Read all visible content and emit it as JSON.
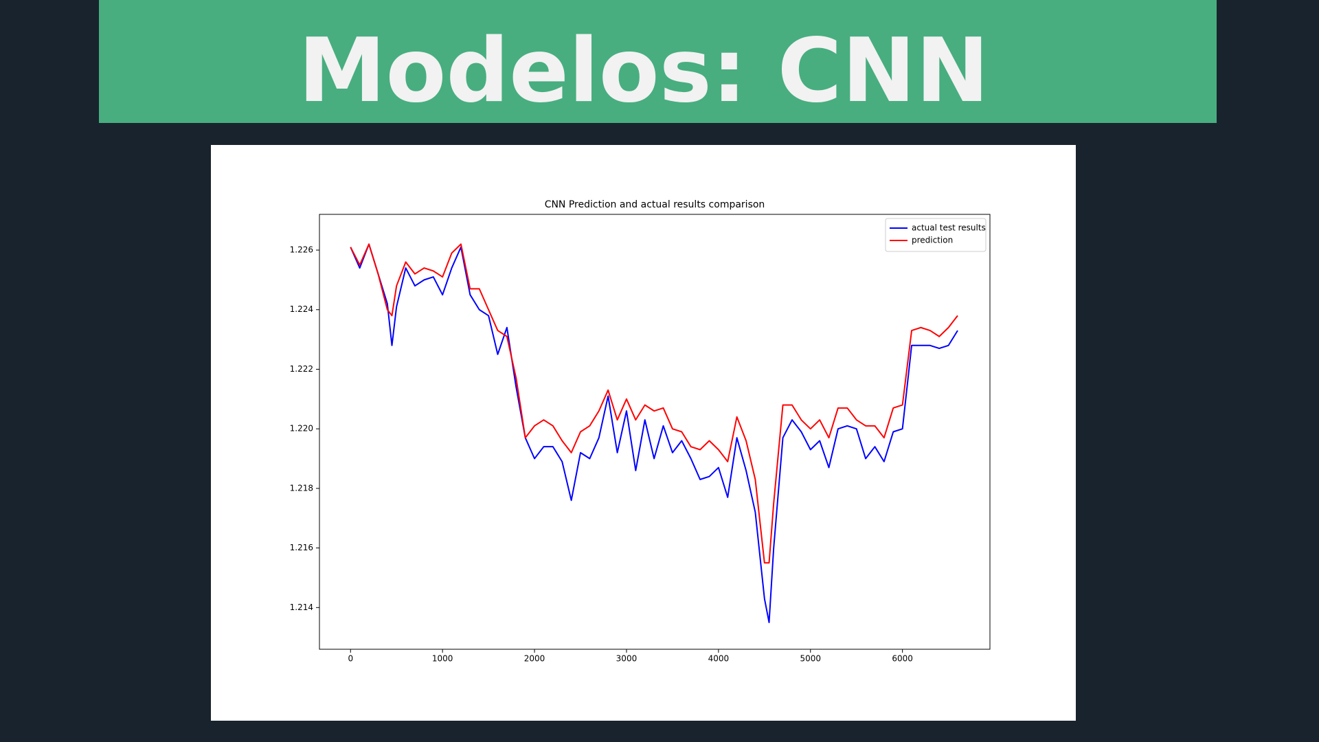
{
  "slide": {
    "title": "Modelos: CNN"
  },
  "chart_data": {
    "type": "line",
    "title": "CNN Prediction and actual results comparison",
    "x": [
      0,
      100,
      200,
      300,
      400,
      450,
      500,
      600,
      700,
      800,
      900,
      1000,
      1100,
      1200,
      1300,
      1400,
      1500,
      1600,
      1700,
      1800,
      1900,
      2000,
      2100,
      2200,
      2300,
      2400,
      2500,
      2600,
      2700,
      2800,
      2900,
      3000,
      3100,
      3200,
      3300,
      3400,
      3500,
      3600,
      3700,
      3800,
      3900,
      4000,
      4100,
      4200,
      4300,
      4400,
      4500,
      4550,
      4600,
      4700,
      4800,
      4900,
      5000,
      5100,
      5200,
      5300,
      5400,
      5500,
      5600,
      5700,
      5800,
      5900,
      6000,
      6100,
      6200,
      6300,
      6400,
      6500,
      6600
    ],
    "series": [
      {
        "name": "actual test results",
        "color": "#0000ff",
        "values": [
          1.2261,
          1.2254,
          1.2262,
          1.2252,
          1.2242,
          1.2228,
          1.2241,
          1.2254,
          1.2248,
          1.225,
          1.2251,
          1.2245,
          1.2254,
          1.2261,
          1.2245,
          1.224,
          1.2238,
          1.2225,
          1.2234,
          1.2214,
          1.2197,
          1.219,
          1.2194,
          1.2194,
          1.2189,
          1.2176,
          1.2192,
          1.219,
          1.2197,
          1.2211,
          1.2192,
          1.2206,
          1.2186,
          1.2203,
          1.219,
          1.2201,
          1.2192,
          1.2196,
          1.219,
          1.2183,
          1.2184,
          1.2187,
          1.2177,
          1.2197,
          1.2186,
          1.2172,
          1.2143,
          1.2135,
          1.216,
          1.2197,
          1.2203,
          1.2199,
          1.2193,
          1.2196,
          1.2187,
          1.22,
          1.2201,
          1.22,
          1.219,
          1.2194,
          1.2189,
          1.2199,
          1.22,
          1.2228,
          1.2228,
          1.2228,
          1.2227,
          1.2228,
          1.2233
        ]
      },
      {
        "name": "prediction",
        "color": "#ff0000",
        "values": [
          1.2261,
          1.2255,
          1.2262,
          1.2252,
          1.224,
          1.2238,
          1.2248,
          1.2256,
          1.2252,
          1.2254,
          1.2253,
          1.2251,
          1.2259,
          1.2262,
          1.2247,
          1.2247,
          1.224,
          1.2233,
          1.2231,
          1.2217,
          1.2197,
          1.2201,
          1.2203,
          1.2201,
          1.2196,
          1.2192,
          1.2199,
          1.2201,
          1.2206,
          1.2213,
          1.2203,
          1.221,
          1.2203,
          1.2208,
          1.2206,
          1.2207,
          1.22,
          1.2199,
          1.2194,
          1.2193,
          1.2196,
          1.2193,
          1.2189,
          1.2204,
          1.2196,
          1.2183,
          1.2155,
          1.2155,
          1.2175,
          1.2208,
          1.2208,
          1.2203,
          1.22,
          1.2203,
          1.2197,
          1.2207,
          1.2207,
          1.2203,
          1.2201,
          1.2201,
          1.2197,
          1.2207,
          1.2208,
          1.2233,
          1.2234,
          1.2233,
          1.2231,
          1.2234,
          1.2238
        ]
      }
    ],
    "xlim": [
      -338,
      6951
    ],
    "ylim": [
      1.2126,
      1.2272
    ],
    "xticks": [
      0,
      1000,
      2000,
      3000,
      4000,
      5000,
      6000
    ],
    "yticks": [
      1.214,
      1.216,
      1.218,
      {
        "value": 1.22,
        "label": "1.220"
      },
      1.222,
      1.224,
      1.226
    ],
    "legend": "upper right"
  }
}
